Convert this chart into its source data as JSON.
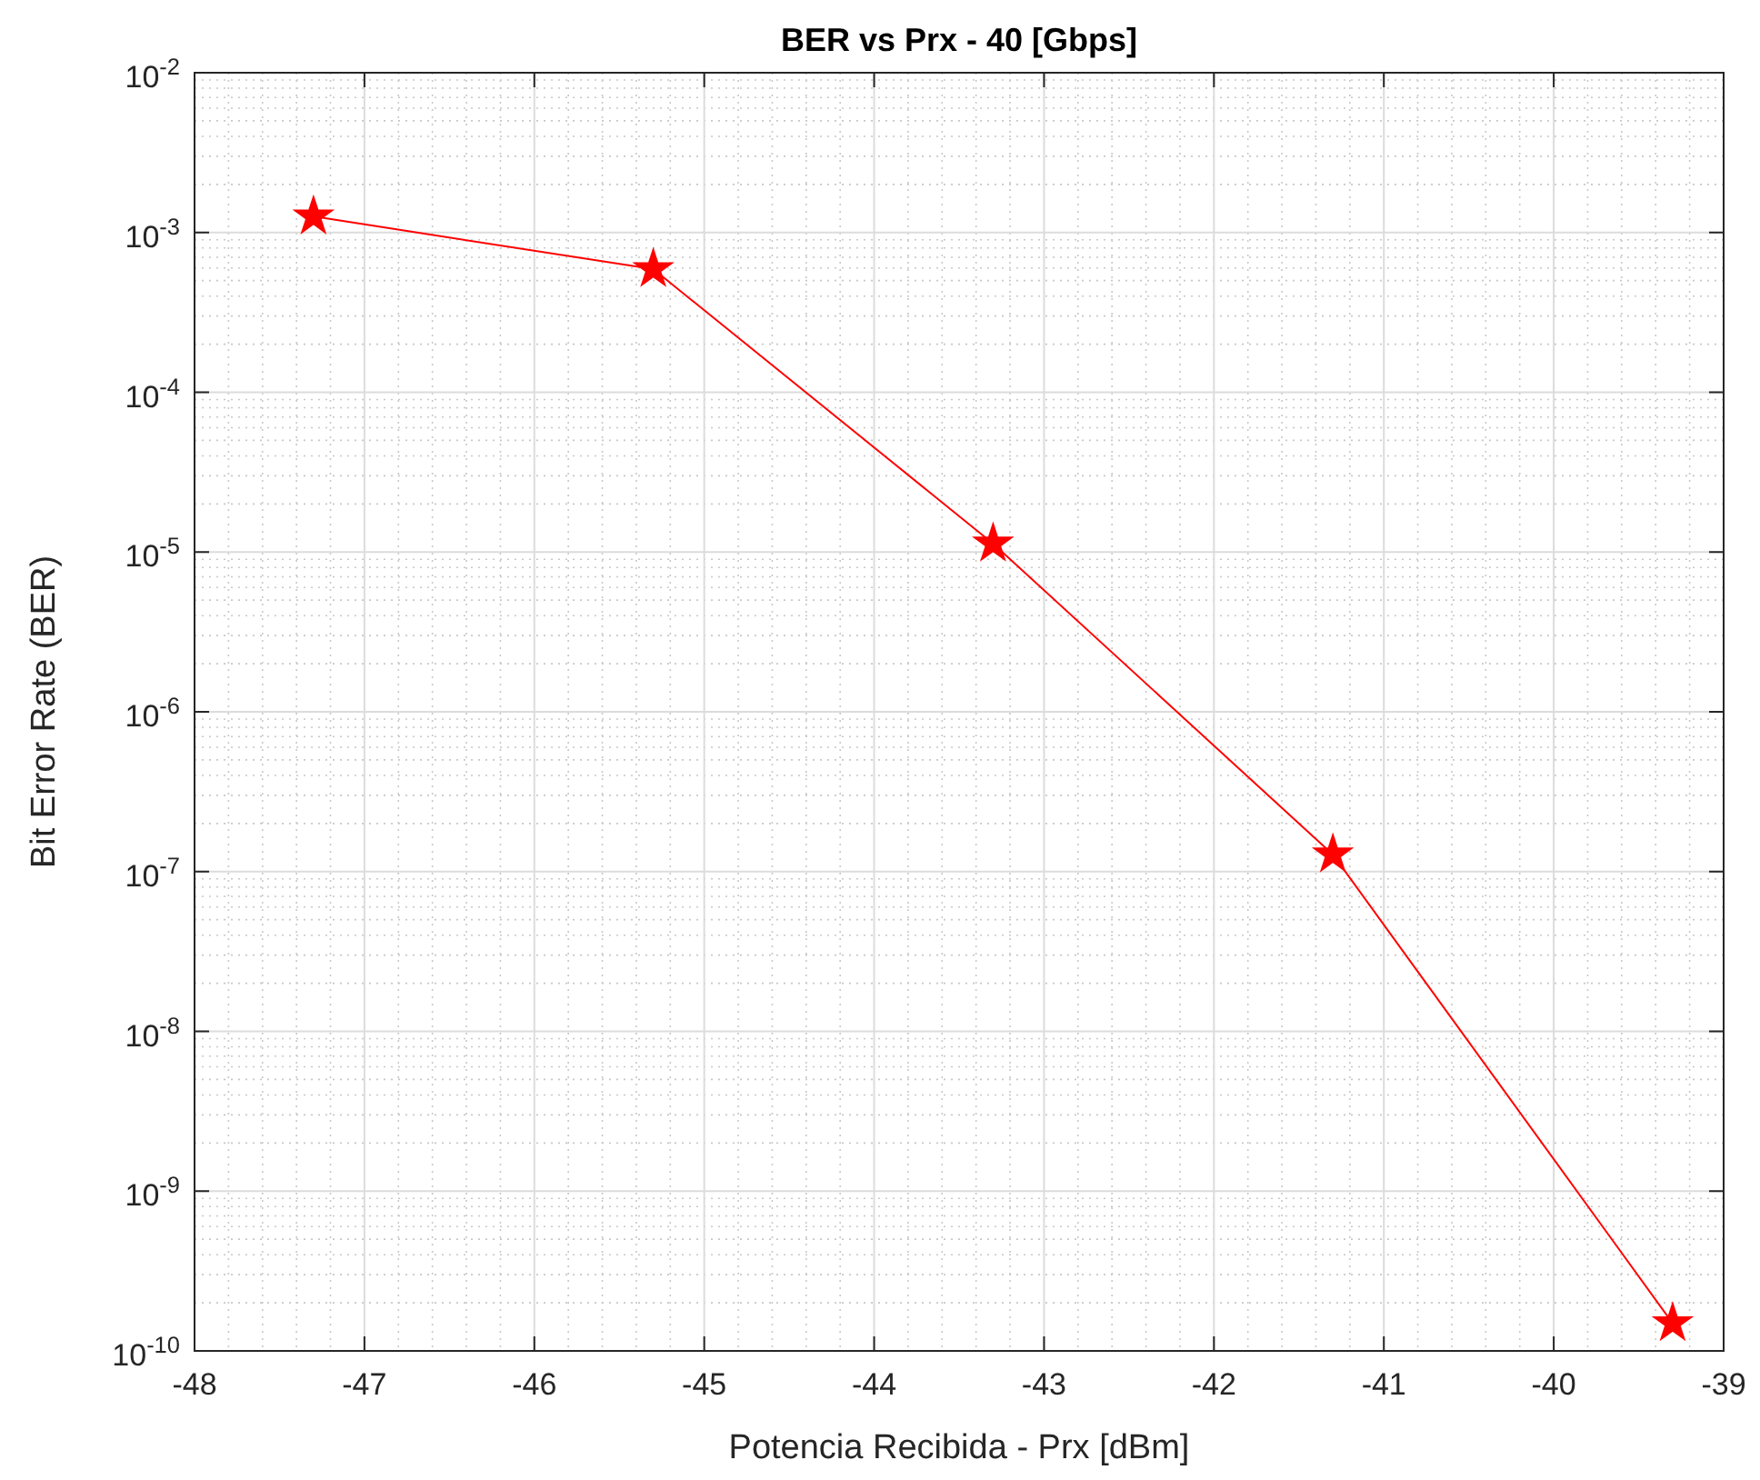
{
  "chart_data": {
    "type": "line",
    "title": "BER vs Prx - 40 [Gbps]",
    "xlabel": "Potencia Recibida - Prx [dBm]",
    "ylabel": "Bit Error Rate (BER)",
    "x": [
      -47.3,
      -45.3,
      -43.3,
      -41.3,
      -39.3
    ],
    "series": [
      {
        "color": "#ff0000",
        "values": [
          0.00126,
          0.00059,
          1.13e-05,
          1.28e-07,
          1.49e-10
        ]
      }
    ],
    "xlim": [
      -48,
      -39
    ],
    "xticks": [
      -48,
      -47,
      -46,
      -45,
      -44,
      -43,
      -42,
      -41,
      -40,
      -39
    ],
    "ylim": [
      1e-10,
      0.01
    ],
    "yticks": [
      {
        "value": 1e-10,
        "label": "10$^{-10}$"
      },
      {
        "value": 1e-09,
        "label": "10$^{-9}$"
      },
      {
        "value": 1e-08,
        "label": "10$^{-8}$"
      },
      {
        "value": 1e-07,
        "label": "10$^{-7}$"
      },
      {
        "value": 1e-06,
        "label": "10$^{-6}$"
      },
      {
        "value": 1e-05,
        "label": "10$^{-5}$"
      },
      {
        "value": 0.0001,
        "label": "10$^{-4}$"
      },
      {
        "value": 0.001,
        "label": "10$^{-3}$"
      },
      {
        "value": 0.01,
        "label": "10$^{-2}$"
      }
    ],
    "log": "y",
    "grid": true,
    "marker": "star",
    "line_style": "solid"
  }
}
